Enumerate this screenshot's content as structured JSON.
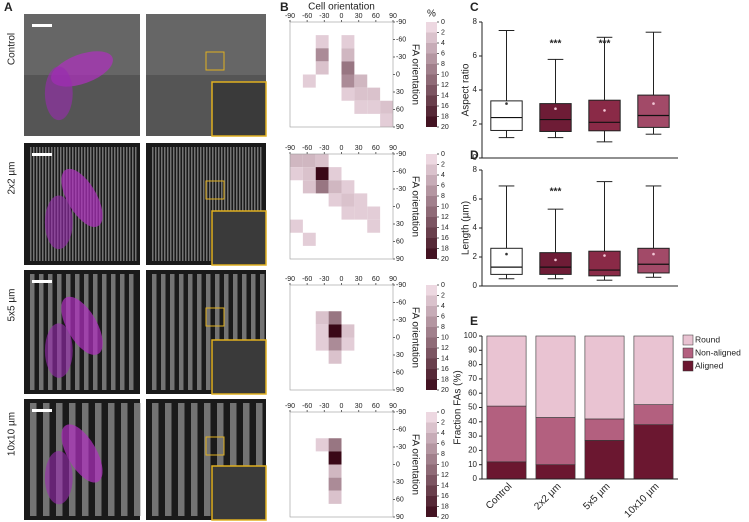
{
  "figure": {
    "panel_labels": [
      "A",
      "B",
      "C",
      "D",
      "E"
    ],
    "row_labels": [
      "Control",
      "2x2 µm",
      "5x5 µm",
      "10x10 µm"
    ]
  },
  "chart_data": [
    {
      "type": "heatmap",
      "x_label": "Cell orientation",
      "y_label": "FA orientation",
      "xbins": [
        -90,
        -67.5,
        -45,
        -22.5,
        0,
        22.5,
        45,
        67.5,
        90
      ],
      "ybins": [
        -90,
        -67.5,
        -45,
        -22.5,
        0,
        22.5,
        45,
        67.5,
        90
      ],
      "xticks": [
        -90,
        -60,
        -30,
        0,
        30,
        60,
        90
      ],
      "yticks": [
        -90,
        -60,
        -30,
        0,
        30,
        60,
        90
      ],
      "zlim": [
        0,
        20
      ],
      "colorbar_title": "%",
      "colorbar_ticks": [
        0,
        2,
        4,
        6,
        8,
        10,
        12,
        14,
        16,
        18,
        20
      ],
      "colors": [
        "#f6e3ec",
        "#3a0817"
      ],
      "z": [
        [
          null,
          null,
          null,
          null,
          null,
          null,
          null,
          null
        ],
        [
          null,
          null,
          2,
          null,
          2,
          null,
          null,
          null
        ],
        [
          null,
          null,
          8,
          null,
          4,
          null,
          null,
          null
        ],
        [
          null,
          null,
          3,
          null,
          10,
          null,
          null,
          null
        ],
        [
          null,
          2,
          null,
          null,
          8,
          4,
          null,
          null
        ],
        [
          null,
          null,
          null,
          null,
          2,
          3,
          3,
          null
        ],
        [
          null,
          null,
          null,
          null,
          null,
          2,
          2,
          3
        ],
        [
          null,
          null,
          null,
          null,
          null,
          null,
          null,
          2
        ]
      ]
    },
    {
      "type": "heatmap",
      "y_label": "FA orientation",
      "xbins": [
        -90,
        -67.5,
        -45,
        -22.5,
        0,
        22.5,
        45,
        67.5,
        90
      ],
      "ybins": [
        -90,
        -67.5,
        -45,
        -22.5,
        0,
        22.5,
        45,
        67.5,
        90
      ],
      "xticks": [
        -90,
        -60,
        -30,
        0,
        30,
        60,
        90
      ],
      "yticks": [
        -90,
        -60,
        -30,
        0,
        30,
        60,
        90
      ],
      "zlim": [
        0,
        20
      ],
      "colorbar_ticks": [
        0,
        2,
        4,
        6,
        8,
        10,
        12,
        14,
        16,
        18,
        20
      ],
      "colors": [
        "#f6e3ec",
        "#3a0817"
      ],
      "z": [
        [
          4,
          4,
          3,
          null,
          null,
          null,
          null,
          null
        ],
        [
          2,
          3,
          20,
          2,
          null,
          null,
          null,
          null
        ],
        [
          null,
          3,
          10,
          4,
          2,
          null,
          null,
          null
        ],
        [
          null,
          null,
          null,
          2,
          3,
          2,
          null,
          null
        ],
        [
          null,
          null,
          null,
          null,
          2,
          2,
          2,
          null
        ],
        [
          2,
          null,
          null,
          null,
          null,
          null,
          2,
          null
        ],
        [
          null,
          2,
          null,
          null,
          null,
          null,
          null,
          null
        ],
        [
          null,
          null,
          null,
          null,
          null,
          null,
          null,
          null
        ]
      ]
    },
    {
      "type": "heatmap",
      "y_label": "FA orientation",
      "xbins": [
        -90,
        -67.5,
        -45,
        -22.5,
        0,
        22.5,
        45,
        67.5,
        90
      ],
      "ybins": [
        -90,
        -67.5,
        -45,
        -22.5,
        0,
        22.5,
        45,
        67.5,
        90
      ],
      "xticks": [
        -90,
        -60,
        -30,
        0,
        30,
        60,
        90
      ],
      "yticks": [
        -90,
        -60,
        -30,
        0,
        30,
        60,
        90
      ],
      "zlim": [
        0,
        20
      ],
      "colorbar_ticks": [
        0,
        2,
        4,
        6,
        8,
        10,
        12,
        14,
        16,
        18,
        20
      ],
      "colors": [
        "#f6e3ec",
        "#3a0817"
      ],
      "z": [
        [
          null,
          null,
          null,
          null,
          null,
          null,
          null,
          null
        ],
        [
          null,
          null,
          null,
          null,
          null,
          null,
          null,
          null
        ],
        [
          null,
          null,
          3,
          10,
          null,
          null,
          null,
          null
        ],
        [
          null,
          null,
          2,
          20,
          3,
          null,
          null,
          null
        ],
        [
          null,
          null,
          2,
          8,
          2,
          null,
          null,
          null
        ],
        [
          null,
          null,
          null,
          3,
          null,
          null,
          null,
          null
        ],
        [
          null,
          null,
          null,
          null,
          null,
          null,
          null,
          null
        ],
        [
          null,
          null,
          null,
          null,
          null,
          null,
          null,
          null
        ]
      ]
    },
    {
      "type": "heatmap",
      "y_label": "FA orientation",
      "xbins": [
        -90,
        -67.5,
        -45,
        -22.5,
        0,
        22.5,
        45,
        67.5,
        90
      ],
      "ybins": [
        -90,
        -67.5,
        -45,
        -22.5,
        0,
        22.5,
        45,
        67.5,
        90
      ],
      "xticks": [
        -90,
        -60,
        -30,
        0,
        30,
        60,
        90
      ],
      "yticks": [
        -90,
        -60,
        -30,
        0,
        30,
        60,
        90
      ],
      "zlim": [
        0,
        20
      ],
      "colorbar_ticks": [
        0,
        2,
        4,
        6,
        8,
        10,
        12,
        14,
        16,
        18,
        20
      ],
      "colors": [
        "#f6e3ec",
        "#3a0817"
      ],
      "z": [
        [
          null,
          null,
          null,
          null,
          null,
          null,
          null,
          null
        ],
        [
          null,
          null,
          null,
          null,
          null,
          null,
          null,
          null
        ],
        [
          null,
          null,
          2,
          10,
          null,
          null,
          null,
          null
        ],
        [
          null,
          null,
          null,
          20,
          null,
          null,
          null,
          null
        ],
        [
          null,
          null,
          null,
          4,
          null,
          null,
          null,
          null
        ],
        [
          null,
          null,
          null,
          8,
          null,
          null,
          null,
          null
        ],
        [
          null,
          null,
          null,
          3,
          null,
          null,
          null,
          null
        ],
        [
          null,
          null,
          null,
          null,
          null,
          null,
          null,
          null
        ]
      ]
    },
    {
      "type": "box",
      "y_label": "Aspect ratio",
      "ylim": [
        0,
        8
      ],
      "yticks": [
        0,
        2,
        4,
        6,
        8
      ],
      "boxes": [
        {
          "color": "#ffffff",
          "low": 1.2,
          "q1": 1.62,
          "median": 2.38,
          "q3": 3.36,
          "high": 7.5,
          "mean": 3.2
        },
        {
          "color": "#6e1c36",
          "low": 1.2,
          "q1": 1.56,
          "median": 2.26,
          "q3": 3.2,
          "high": 5.8,
          "mean": 2.9
        },
        {
          "color": "#8a2a47",
          "low": 0.95,
          "q1": 1.6,
          "median": 2.1,
          "q3": 3.4,
          "high": 7.1,
          "mean": 2.8
        },
        {
          "color": "#a24a68",
          "low": 1.4,
          "q1": 1.8,
          "median": 2.5,
          "q3": 3.7,
          "high": 7.4,
          "mean": 3.2
        }
      ],
      "annotations": [
        null,
        "***",
        "***",
        null
      ]
    },
    {
      "type": "box",
      "y_label": "Length (µm)",
      "ylim": [
        0,
        8
      ],
      "yticks": [
        0,
        2,
        4,
        6,
        8
      ],
      "boxes": [
        {
          "color": "#ffffff",
          "low": 0.5,
          "q1": 0.8,
          "median": 1.3,
          "q3": 2.6,
          "high": 6.9,
          "mean": 2.2
        },
        {
          "color": "#6e1c36",
          "low": 0.5,
          "q1": 0.8,
          "median": 1.3,
          "q3": 2.3,
          "high": 5.3,
          "mean": 1.8
        },
        {
          "color": "#8a2a47",
          "low": 0.4,
          "q1": 0.7,
          "median": 1.1,
          "q3": 2.4,
          "high": 7.2,
          "mean": 2.1
        },
        {
          "color": "#a24a68",
          "low": 0.6,
          "q1": 0.9,
          "median": 1.5,
          "q3": 2.6,
          "high": 6.9,
          "mean": 2.2
        }
      ],
      "annotations": [
        null,
        "***",
        null,
        null
      ]
    },
    {
      "type": "stacked_bar",
      "y_label": "Fraction FAs (%)",
      "ylim": [
        0,
        100
      ],
      "yticks": [
        0,
        10,
        20,
        30,
        40,
        50,
        60,
        70,
        80,
        90,
        100
      ],
      "categories": [
        "Control",
        "2x2 µm",
        "5x5 µm",
        "10x10 µm"
      ],
      "series": [
        {
          "name": "Aligned",
          "color": "#6b1730",
          "values": [
            12,
            10,
            27,
            38
          ]
        },
        {
          "name": "Non-aligned",
          "color": "#b3607f",
          "values": [
            39,
            33,
            15,
            14
          ]
        },
        {
          "name": "Round",
          "color": "#e9c3d2",
          "values": [
            49,
            57,
            58,
            48
          ]
        }
      ]
    }
  ]
}
